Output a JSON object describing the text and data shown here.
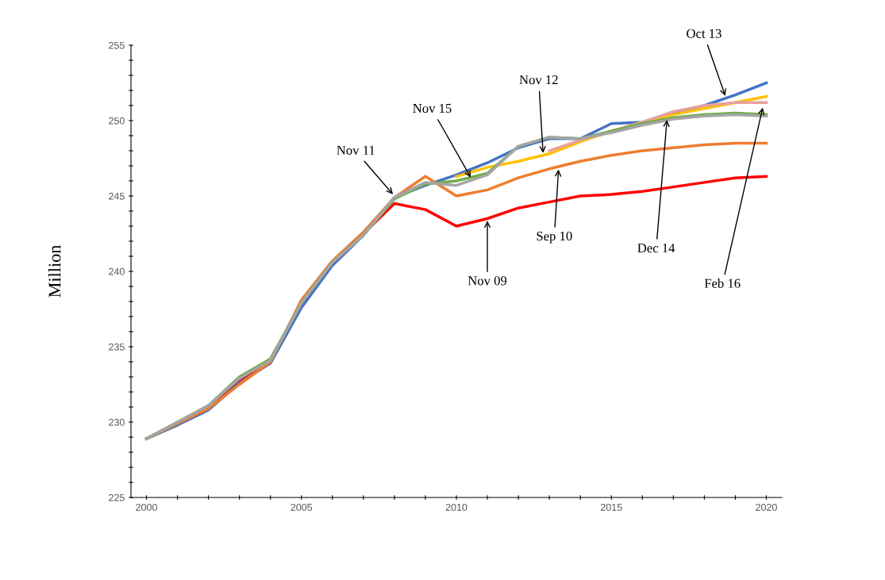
{
  "chart_data": {
    "type": "line",
    "ylabel": "Million",
    "x": [
      2000,
      2001,
      2002,
      2003,
      2004,
      2005,
      2006,
      2007,
      2008,
      2009,
      2010,
      2011,
      2012,
      2013,
      2014,
      2015,
      2016,
      2017,
      2018,
      2019,
      2020
    ],
    "series": [
      {
        "color": "#ff0000",
        "values": [
          228.9,
          229.9,
          230.9,
          232.7,
          234.0,
          237.9,
          240.6,
          242.5,
          244.5,
          244.1,
          243.0,
          243.5,
          244.2,
          244.6,
          245.0,
          245.1,
          245.3,
          245.6,
          245.9,
          246.2,
          246.3
        ]
      },
      {
        "color": "#4472c4",
        "values": [
          228.9,
          229.8,
          230.8,
          232.6,
          233.9,
          237.6,
          240.4,
          242.4,
          244.9,
          245.7,
          246.4,
          247.2,
          248.2,
          248.8,
          248.8,
          249.8,
          249.9,
          250.5,
          251.0,
          251.7,
          252.5
        ]
      },
      {
        "color": "#ed7d31",
        "values": [
          228.9,
          229.9,
          230.9,
          232.5,
          234.0,
          238.1,
          240.7,
          242.6,
          244.9,
          246.3,
          245.0,
          245.4,
          246.2,
          246.8,
          247.3,
          247.7,
          248.0,
          248.2,
          248.4,
          248.5,
          248.5
        ]
      },
      {
        "color": "#ffc000",
        "values": [
          null,
          null,
          null,
          null,
          null,
          null,
          null,
          null,
          null,
          null,
          246.3,
          246.9,
          247.3,
          247.8,
          248.6,
          249.3,
          249.9,
          250.4,
          250.8,
          251.2,
          251.6
        ]
      },
      {
        "color": "#e8a0a0",
        "values": [
          null,
          null,
          null,
          null,
          null,
          null,
          null,
          null,
          null,
          null,
          null,
          null,
          null,
          248.0,
          248.7,
          249.3,
          249.9,
          250.6,
          251.0,
          251.2,
          251.2
        ]
      },
      {
        "color": "#70ad47",
        "values": [
          228.9,
          230.0,
          231.1,
          233.0,
          234.2,
          237.9,
          240.6,
          242.4,
          244.8,
          245.8,
          246.0,
          246.5,
          248.3,
          248.9,
          248.8,
          249.3,
          249.8,
          250.2,
          250.4,
          250.5,
          250.4
        ]
      },
      {
        "color": "#a5a5a5",
        "values": [
          228.9,
          230.0,
          231.1,
          232.9,
          234.1,
          237.9,
          240.6,
          242.4,
          244.9,
          245.9,
          245.7,
          246.4,
          248.3,
          248.9,
          248.8,
          249.2,
          249.7,
          250.1,
          250.3,
          250.4,
          250.3
        ]
      }
    ],
    "annotations": [
      {
        "text": "Oct 13",
        "x": 2018.7,
        "y": 251.5
      },
      {
        "text": "Nov 12",
        "x": 2012.8,
        "y": 247.7
      },
      {
        "text": "Nov 15",
        "x": 2010.5,
        "y": 246.1
      },
      {
        "text": "Nov 11",
        "x": 2008,
        "y": 245.0
      },
      {
        "text": "Sep 10",
        "x": 2013.3,
        "y": 246.9
      },
      {
        "text": "Dec 14",
        "x": 2016.8,
        "y": 250.2
      },
      {
        "text": "Feb 16",
        "x": 2019.9,
        "y": 251.0
      },
      {
        "text": "Nov 09",
        "x": 2011,
        "y": 243.5
      }
    ],
    "xlim": [
      1999.5,
      2020.5
    ],
    "xticks": [
      2000,
      {
        "value": 2001,
        "label": null
      },
      {
        "value": 2002,
        "label": null
      },
      {
        "value": 2003,
        "label": null
      },
      {
        "value": 2004,
        "label": null
      },
      2005,
      {
        "value": 2006,
        "label": null
      },
      {
        "value": 2007,
        "label": null
      },
      {
        "value": 2008,
        "label": null
      },
      {
        "value": 2009,
        "label": null
      },
      2010,
      {
        "value": 2011,
        "label": null
      },
      {
        "value": 2012,
        "label": null
      },
      {
        "value": 2013,
        "label": null
      },
      {
        "value": 2014,
        "label": null
      },
      2015,
      {
        "value": 2016,
        "label": null
      },
      {
        "value": 2017,
        "label": null
      },
      {
        "value": 2018,
        "label": null
      },
      {
        "value": 2019,
        "label": null
      },
      2020
    ],
    "ylim": [
      225,
      255
    ],
    "yticks": [
      225,
      {
        "value": 226,
        "label": null
      },
      {
        "value": 227,
        "label": null
      },
      {
        "value": 228,
        "label": null
      },
      {
        "value": 229,
        "label": null
      },
      230,
      {
        "value": 231,
        "label": null
      },
      {
        "value": 232,
        "label": null
      },
      {
        "value": 233,
        "label": null
      },
      {
        "value": 234,
        "label": null
      },
      235,
      {
        "value": 236,
        "label": null
      },
      {
        "value": 237,
        "label": null
      },
      {
        "value": 238,
        "label": null
      },
      {
        "value": 239,
        "label": null
      },
      240,
      {
        "value": 241,
        "label": null
      },
      {
        "value": 242,
        "label": null
      },
      {
        "value": 243,
        "label": null
      },
      {
        "value": 244,
        "label": null
      },
      245,
      {
        "value": 246,
        "label": null
      },
      {
        "value": 247,
        "label": null
      },
      {
        "value": 248,
        "label": null
      },
      {
        "value": 249,
        "label": null
      },
      250,
      {
        "value": 251,
        "label": null
      },
      {
        "value": 252,
        "label": null
      },
      {
        "value": 253,
        "label": null
      },
      {
        "value": 254,
        "label": null
      },
      255
    ],
    "grid": false,
    "marker": "none",
    "line_style": "solid"
  }
}
